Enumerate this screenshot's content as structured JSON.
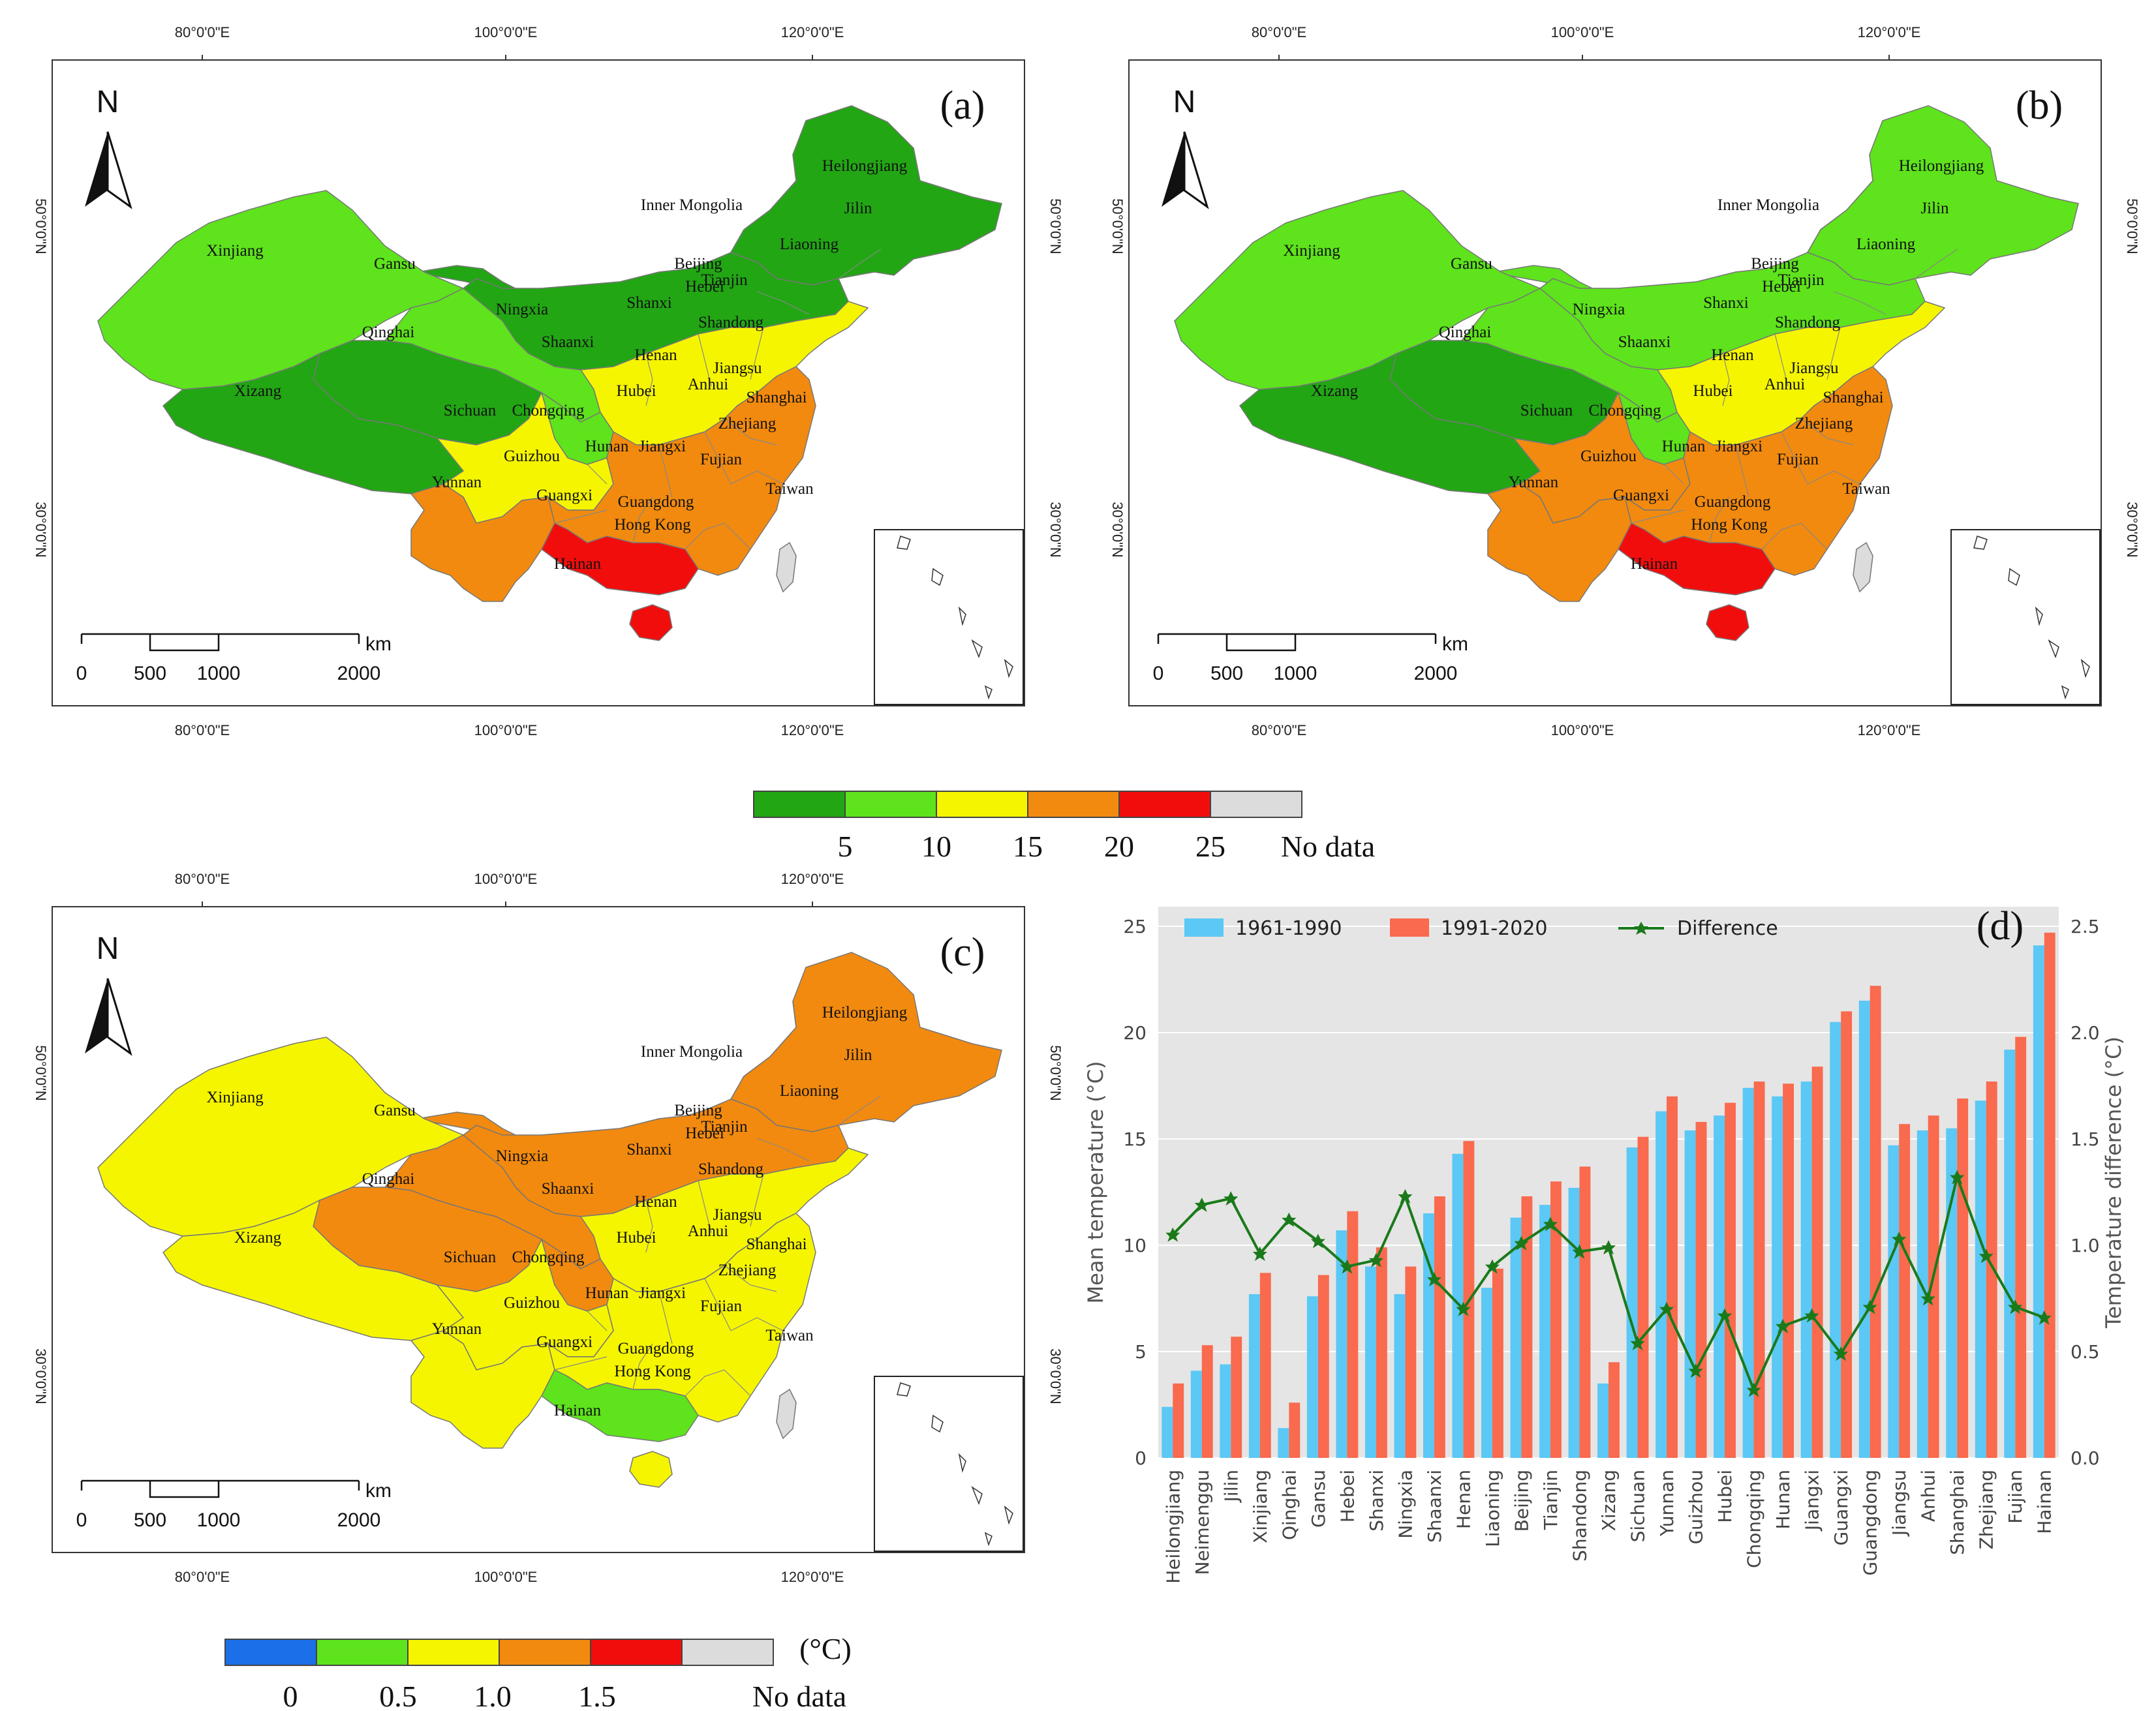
{
  "colors": {
    "dark_green": "#22a614",
    "light_green": "#5ee31c",
    "yellow": "#f5f500",
    "orange": "#f28a0f",
    "red": "#f20d0d",
    "grey": "#dcdcdc",
    "blue": "#1b6fe8",
    "bar_1961": "#5bc8f5",
    "bar_1991": "#f96a4e",
    "diff_line": "#1a7a1a",
    "chart_bg": "#e5e5e5"
  },
  "maps": [
    {
      "label": "(a)",
      "lon_labels": [
        "80°0'0\"E",
        "100°0'0\"E",
        "120°0'0\"E"
      ],
      "lat_labels": [
        "50°0'0\"N",
        "30°0'0\"N"
      ],
      "north": "N",
      "scale": {
        "ticks": [
          "0",
          "500",
          "1000",
          "2000"
        ],
        "unit": "km"
      },
      "region_colors": {
        "northeast": "dark_green",
        "innermongolia": "dark_green",
        "xinjiang": "light_green",
        "gansu": "light_green",
        "qinghai": "dark_green",
        "xizang": "dark_green",
        "ningxia": "light_green",
        "north": "yellow",
        "sichuan": "yellow",
        "yunnan": "orange",
        "southcentral": "orange",
        "guangxi": "red",
        "hainan": "red"
      },
      "provinces": [
        "Heilongjiang",
        "Jilin",
        "Liaoning",
        "Inner Mongolia",
        "Xinjiang",
        "Gansu",
        "Beijing",
        "Tianjin",
        "Hebei",
        "Ningxia",
        "Shanxi",
        "Shandong",
        "Qinghai",
        "Shaanxi",
        "Henan",
        "Jiangsu",
        "Xizang",
        "Anhui",
        "Hubei",
        "Shanghai",
        "Sichuan",
        "Chongqing",
        "Zhejiang",
        "Hunan",
        "Jiangxi",
        "Guizhou",
        "Fujian",
        "Yunnan",
        "Taiwan",
        "Guangxi",
        "Guangdong",
        "Hong Kong",
        "Hainan"
      ]
    },
    {
      "label": "(b)",
      "lon_labels": [
        "80°0'0\"E",
        "100°0'0\"E",
        "120°0'0\"E"
      ],
      "lat_labels": [
        "50°0'0\"N",
        "30°0'0\"N"
      ],
      "north": "N",
      "scale": {
        "ticks": [
          "0",
          "500",
          "1000",
          "2000"
        ],
        "unit": "km"
      },
      "region_colors": {
        "northeast": "light_green",
        "innermongolia": "light_green",
        "xinjiang": "light_green",
        "gansu": "light_green",
        "qinghai": "dark_green",
        "xizang": "dark_green",
        "ningxia": "light_green",
        "north": "yellow",
        "sichuan": "orange",
        "yunnan": "orange",
        "southcentral": "orange",
        "guangxi": "red",
        "hainan": "red"
      },
      "provinces": [
        "Heilongjiang",
        "Jilin",
        "Liaoning",
        "Inner Mongolia",
        "Xinjiang",
        "Gansu",
        "Beijing",
        "Tianjin",
        "Hebei",
        "Ningxia",
        "Shanxi",
        "Shandong",
        "Qinghai",
        "Shaanxi",
        "Henan",
        "Jiangsu",
        "Xizang",
        "Anhui",
        "Hubei",
        "Shanghai",
        "Sichuan",
        "Chongqing",
        "Zhejiang",
        "Hunan",
        "Jiangxi",
        "Guizhou",
        "Fujian",
        "Yunnan",
        "Taiwan",
        "Guangxi",
        "Guangdong",
        "Hong Kong",
        "Hainan"
      ]
    },
    {
      "label": "(c)",
      "lon_labels": [
        "80°0'0\"E",
        "100°0'0\"E",
        "120°0'0\"E"
      ],
      "lat_labels": [
        "50°0'0\"N",
        "30°0'0\"N"
      ],
      "north": "N",
      "scale": {
        "ticks": [
          "0",
          "500",
          "1000",
          "2000"
        ],
        "unit": "km"
      },
      "region_colors": {
        "northeast": "orange",
        "innermongolia": "orange",
        "xinjiang": "yellow",
        "gansu": "orange",
        "qinghai": "orange",
        "xizang": "yellow",
        "ningxia": "orange",
        "north": "yellow",
        "sichuan": "yellow",
        "yunnan": "yellow",
        "southcentral": "yellow",
        "guangxi": "light_green",
        "hainan": "yellow"
      },
      "provinces": [
        "Heilongjiang",
        "Jilin",
        "Liaoning",
        "Inner Mongolia",
        "Xinjiang",
        "Gansu",
        "Beijing",
        "Tianjin",
        "Hebei",
        "Ningxia",
        "Shanxi",
        "Shandong",
        "Qinghai",
        "Shaanxi",
        "Henan",
        "Jiangsu",
        "Xizang",
        "Anhui",
        "Hubei",
        "Shanghai",
        "Sichuan",
        "Chongqing",
        "Zhejiang",
        "Hunan",
        "Jiangxi",
        "Guizhou",
        "Fujian",
        "Yunnan",
        "Taiwan",
        "Guangxi",
        "Guangdong",
        "Hong Kong",
        "Hainan"
      ]
    }
  ],
  "legend_temp": {
    "colors": [
      "dark_green",
      "light_green",
      "yellow",
      "orange",
      "red",
      "grey"
    ],
    "labels": [
      "5",
      "10",
      "15",
      "20",
      "25",
      "No data"
    ]
  },
  "legend_diff": {
    "colors": [
      "blue",
      "light_green",
      "yellow",
      "orange",
      "red",
      "grey"
    ],
    "labels": [
      "0",
      "0.5",
      "1.0",
      "1.5",
      "No data"
    ],
    "unit": "(°C)"
  },
  "chart_data": {
    "type": "bar",
    "title": "(d)",
    "categories": [
      "Heilongjiang",
      "Neimenggu",
      "Jilin",
      "Xinjiang",
      "Qinghai",
      "Gansu",
      "Hebei",
      "Shanxi",
      "Ningxia",
      "Shaanxi",
      "Henan",
      "Liaoning",
      "Beijing",
      "Tianjin",
      "Shandong",
      "Xizang",
      "Sichuan",
      "Yunnan",
      "Guizhou",
      "Hubei",
      "Chongqing",
      "Hunan",
      "Jiangxi",
      "Guangxi",
      "Guangdong",
      "Jiangsu",
      "Anhui",
      "Shanghai",
      "Zhejiang",
      "Fujian",
      "Hainan"
    ],
    "series": [
      {
        "name": "1961-1990",
        "values": [
          2.4,
          4.1,
          4.4,
          7.7,
          1.4,
          7.6,
          10.7,
          9.0,
          7.7,
          11.5,
          14.3,
          8.0,
          11.3,
          11.9,
          12.7,
          3.5,
          14.6,
          16.3,
          15.4,
          16.1,
          17.4,
          17.0,
          17.7,
          20.5,
          21.5,
          14.7,
          15.4,
          15.5,
          16.8,
          19.2,
          24.1
        ]
      },
      {
        "name": "1991-2020",
        "values": [
          3.5,
          5.3,
          5.7,
          8.7,
          2.6,
          8.6,
          11.6,
          9.9,
          9.0,
          12.3,
          14.9,
          8.9,
          12.3,
          13.0,
          13.7,
          4.5,
          15.1,
          17.0,
          15.8,
          16.7,
          17.7,
          17.6,
          18.4,
          21.0,
          22.2,
          15.7,
          16.1,
          16.9,
          17.7,
          19.8,
          24.7
        ]
      },
      {
        "name": "Difference",
        "axis": "right",
        "values": [
          1.05,
          1.19,
          1.22,
          0.96,
          1.12,
          1.02,
          0.9,
          0.93,
          1.23,
          0.84,
          0.7,
          0.9,
          1.01,
          1.1,
          0.97,
          0.99,
          0.54,
          0.7,
          0.41,
          0.67,
          0.32,
          0.62,
          0.67,
          0.49,
          0.71,
          1.03,
          0.75,
          1.32,
          0.95,
          0.71,
          0.66
        ]
      }
    ],
    "ylabel": "Mean temperature (°C)",
    "ylabel_right": "Temperature difference (°C)",
    "ylim": [
      0,
      25
    ],
    "ylim_right": [
      0,
      2.5
    ],
    "yticks": [
      "0",
      "5",
      "10",
      "15",
      "20",
      "25"
    ],
    "yticks_right": [
      "0.0",
      "0.5",
      "1.0",
      "1.5",
      "2.0",
      "2.5"
    ],
    "grid": true,
    "legend_position": "top"
  }
}
